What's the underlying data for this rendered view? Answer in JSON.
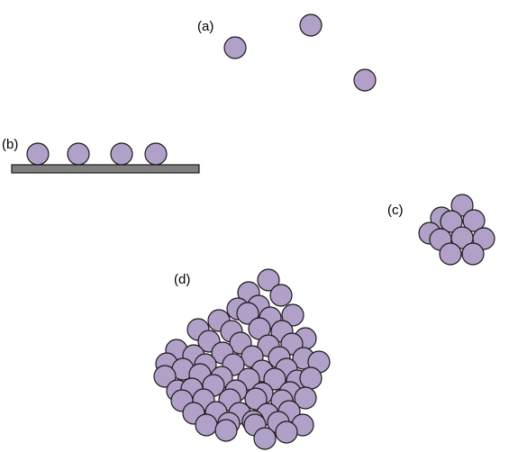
{
  "labels": {
    "a": "(a)",
    "b": "(b)",
    "c": "(c)",
    "d": "(d)"
  },
  "colors": {
    "sphere_fill": "#b1a0c8",
    "sphere_stroke": "#1a1a1a",
    "substrate_fill": "#7f7f7f"
  }
}
